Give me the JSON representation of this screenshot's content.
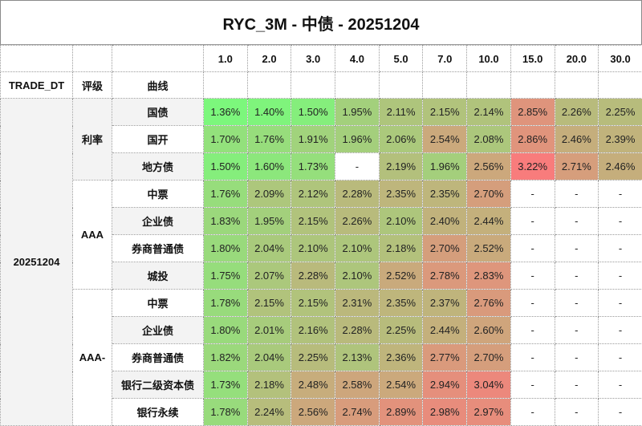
{
  "title": "RYC_3M - 中债 - 20251204",
  "header": {
    "tenors": [
      "1.0",
      "2.0",
      "3.0",
      "4.0",
      "5.0",
      "7.0",
      "10.0",
      "15.0",
      "20.0",
      "30.0"
    ],
    "trade_dt_label": "TRADE_DT",
    "rating_label": "评级",
    "curve_label": "曲线"
  },
  "trade_dt": "20251204",
  "color_scale": {
    "min_value": 1.36,
    "max_value": 3.22,
    "min_color": "#7cf77c",
    "max_color": "#f87c7c",
    "empty_color": "#ffffff"
  },
  "groups": [
    {
      "rating": "利率",
      "rows": [
        {
          "curve": "国债",
          "values": [
            "1.36%",
            "1.40%",
            "1.50%",
            "1.95%",
            "2.11%",
            "2.15%",
            "2.14%",
            "2.85%",
            "2.26%",
            "2.25%"
          ]
        },
        {
          "curve": "国开",
          "values": [
            "1.70%",
            "1.76%",
            "1.91%",
            "1.96%",
            "2.06%",
            "2.54%",
            "2.08%",
            "2.86%",
            "2.46%",
            "2.39%"
          ]
        },
        {
          "curve": "地方债",
          "values": [
            "1.50%",
            "1.60%",
            "1.73%",
            "-",
            "2.19%",
            "1.96%",
            "2.56%",
            "3.22%",
            "2.71%",
            "2.46%"
          ]
        }
      ]
    },
    {
      "rating": "AAA",
      "rows": [
        {
          "curve": "中票",
          "values": [
            "1.76%",
            "2.09%",
            "2.12%",
            "2.28%",
            "2.35%",
            "2.35%",
            "2.70%",
            "-",
            "-",
            "-"
          ]
        },
        {
          "curve": "企业债",
          "values": [
            "1.83%",
            "1.95%",
            "2.15%",
            "2.26%",
            "2.10%",
            "2.40%",
            "2.44%",
            "-",
            "-",
            "-"
          ]
        },
        {
          "curve": "券商普通债",
          "values": [
            "1.80%",
            "2.04%",
            "2.10%",
            "2.10%",
            "2.18%",
            "2.70%",
            "2.52%",
            "-",
            "-",
            "-"
          ]
        },
        {
          "curve": "城投",
          "values": [
            "1.75%",
            "2.07%",
            "2.28%",
            "2.10%",
            "2.52%",
            "2.78%",
            "2.83%",
            "-",
            "-",
            "-"
          ]
        }
      ]
    },
    {
      "rating": "AAA-",
      "rows": [
        {
          "curve": "中票",
          "values": [
            "1.78%",
            "2.15%",
            "2.15%",
            "2.31%",
            "2.35%",
            "2.37%",
            "2.76%",
            "-",
            "-",
            "-"
          ]
        },
        {
          "curve": "企业债",
          "values": [
            "1.80%",
            "2.01%",
            "2.16%",
            "2.28%",
            "2.25%",
            "2.44%",
            "2.60%",
            "-",
            "-",
            "-"
          ]
        },
        {
          "curve": "券商普通债",
          "values": [
            "1.82%",
            "2.04%",
            "2.25%",
            "2.13%",
            "2.36%",
            "2.77%",
            "2.70%",
            "-",
            "-",
            "-"
          ]
        },
        {
          "curve": "银行二级资本债",
          "values": [
            "1.73%",
            "2.18%",
            "2.48%",
            "2.58%",
            "2.54%",
            "2.94%",
            "3.04%",
            "-",
            "-",
            "-"
          ]
        },
        {
          "curve": "银行永续",
          "values": [
            "1.78%",
            "2.24%",
            "2.56%",
            "2.74%",
            "2.89%",
            "2.98%",
            "2.97%",
            "-",
            "-",
            "-"
          ]
        }
      ]
    }
  ]
}
